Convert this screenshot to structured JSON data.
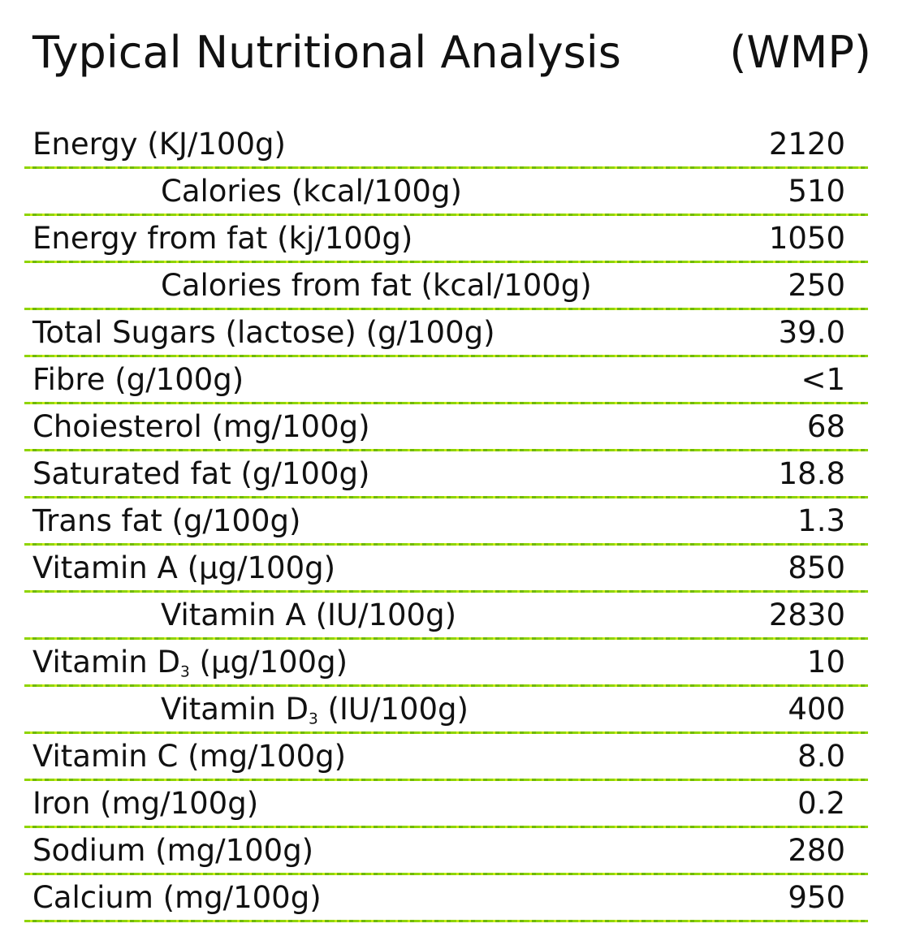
{
  "header": {
    "title": "Typical Nutritional Analysis",
    "subtitle": "(WMP)"
  },
  "rows": [
    {
      "label": "Energy (KJ/100g)",
      "value": "2120",
      "indent": false
    },
    {
      "label": "Calories (kcal/100g)",
      "value": "510",
      "indent": true
    },
    {
      "label": "Energy from fat (kj/100g)",
      "value": "1050",
      "indent": false
    },
    {
      "label": "Calories from fat (kcal/100g)",
      "value": "250",
      "indent": true
    },
    {
      "label": "Total Sugars (lactose) (g/100g)",
      "value": "39.0",
      "indent": false
    },
    {
      "label": "Fibre  (g/100g)",
      "value": "<1",
      "indent": false
    },
    {
      "label": "Choiesterol (mg/100g)",
      "value": "68",
      "indent": false
    },
    {
      "label": "Saturated fat (g/100g)",
      "value": "18.8",
      "indent": false
    },
    {
      "label": "Trans fat (g/100g)",
      "value": "1.3",
      "indent": false
    },
    {
      "label": "Vitamin A (µg/100g)",
      "value": "850",
      "indent": false
    },
    {
      "label": "Vitamin A (IU/100g)",
      "value": "2830",
      "indent": true
    },
    {
      "label": "Vitamin D3 (µg/100g)",
      "label_main": "Vitamin D",
      "label_sub": "3",
      "label_rest": " (µg/100g)",
      "value": "10",
      "indent": false
    },
    {
      "label": "Vitamin D3 (IU/100g)",
      "label_main": "Vitamin D",
      "label_sub": "3",
      "label_rest": " (IU/100g)",
      "value": "400",
      "indent": true
    },
    {
      "label": "Vitamin C (mg/100g)",
      "value": "8.0",
      "indent": false
    },
    {
      "label": "Iron (mg/100g)",
      "value": "0.2",
      "indent": false
    },
    {
      "label": "Sodium (mg/100g)",
      "value": "280",
      "indent": false
    },
    {
      "label": "Calcium (mg/100g)",
      "value": "950",
      "indent": false
    }
  ],
  "colors": {
    "rule": "#8fd400",
    "text": "#111111"
  }
}
